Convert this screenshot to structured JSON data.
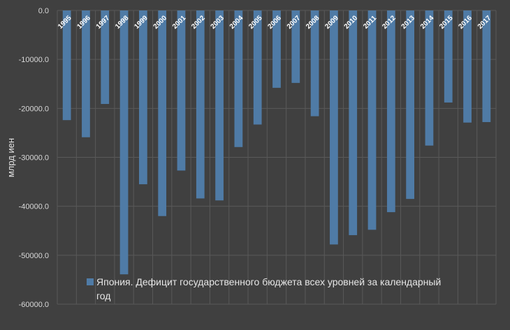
{
  "chart_data": {
    "type": "bar",
    "categories": [
      "1995",
      "1996",
      "1997",
      "1998",
      "1999",
      "2000",
      "2001",
      "2002",
      "2003",
      "2004",
      "2005",
      "2006",
      "2007",
      "2008",
      "2009",
      "2010",
      "2011",
      "2012",
      "2013",
      "2014",
      "2015",
      "2016",
      "2017"
    ],
    "series": [
      {
        "name": "Япония. Дефицит государственного бюджета всех уровней за календарный год",
        "values": [
          -22400,
          -25900,
          -19100,
          -53900,
          -35500,
          -42000,
          -32700,
          -38400,
          -38800,
          -27900,
          -23300,
          -15800,
          -14800,
          -21600,
          -47800,
          -45900,
          -44800,
          -41200,
          -38500,
          -27600,
          -18800,
          -22900,
          -22800
        ],
        "color": "#4f7ba6"
      }
    ],
    "ylabel": "млрд иен",
    "ylim": [
      -60000,
      0
    ],
    "yticks": [
      0,
      -10000,
      -20000,
      -30000,
      -40000,
      -50000,
      -60000
    ],
    "ytick_labels": [
      "0.0",
      "-10000.0",
      "-20000.0",
      "-30000.0",
      "-40000.0",
      "-50000.0",
      "-60000.0"
    ],
    "grid": true,
    "legend": {
      "position": "bottom-center",
      "lines": [
        "Япония. Дефицит государственного бюджета всех уровней за календарный",
        "год"
      ]
    },
    "background": "#404040",
    "xtick_color": "#ffffff"
  }
}
